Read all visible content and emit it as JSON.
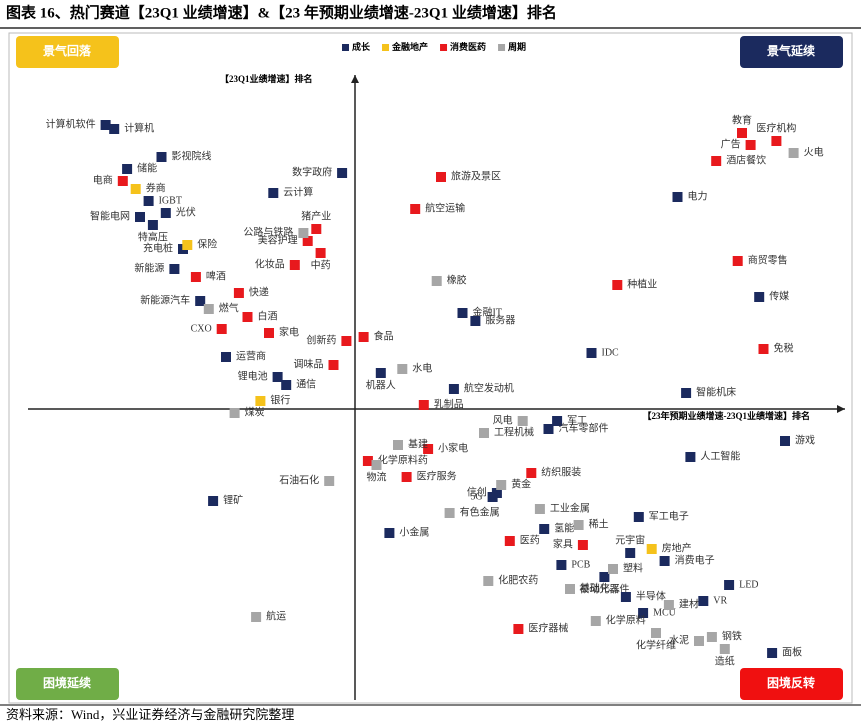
{
  "chart_data": {
    "type": "scatter",
    "title": "图表 16、热门赛道【23Q1 业绩增速】&【23 年预期业绩增速-23Q1 业绩增速】排名",
    "source": "资料来源：Wind，兴业证券经济与金融研究院整理",
    "x_label": "【23年预期业绩增速-23Q1业绩增速】排名",
    "y_label": "【23Q1业绩增速】排名",
    "quadrant_labels": {
      "top_left": "景气回落",
      "top_right": "景气延续",
      "bottom_left": "困境延续",
      "bottom_right": "困境反转"
    },
    "xlim": [
      -80,
      114
    ],
    "ylim": [
      -73,
      84
    ],
    "series": [
      {
        "name": "成长",
        "color": "#1b2a5e",
        "labels": [
          "计算机软件",
          "计算机",
          "储能",
          "影视院线",
          "IGBT",
          "光伏",
          "智能电网",
          "特高压",
          "充电桩",
          "新能源",
          "新能源汽车",
          "运营商",
          "锂电池",
          "通信",
          "数字政府",
          "云计算",
          "金融IT",
          "服务器",
          "机器人",
          "航空发动机",
          "IDC",
          "电力",
          "智能机床",
          "传媒",
          "军工",
          "汽车零部件",
          "游戏",
          "人工智能",
          "锂矿",
          "小金属",
          "信创",
          "5G",
          "氢能",
          "军工电子",
          "PCB",
          "被动元器件",
          "消费电子",
          "半导体",
          "MCU",
          "VR",
          "LED",
          "面板",
          "元宇宙"
        ],
        "x": [
          -58,
          -56,
          -53,
          -45,
          -48,
          -44,
          -50,
          -47,
          -40,
          -42,
          -36,
          -30,
          -18,
          -16,
          -3,
          -19,
          25,
          28,
          6,
          23,
          55,
          75,
          77,
          94,
          47,
          45,
          100,
          78,
          -33,
          8,
          33,
          32,
          44,
          66,
          48,
          58,
          72,
          63,
          67,
          81,
          87,
          97,
          64
        ],
        "y": [
          71,
          70,
          60,
          63,
          52,
          49,
          48,
          46,
          40,
          35,
          27,
          13,
          8,
          6,
          59,
          54,
          24,
          22,
          9,
          5,
          14,
          53,
          4,
          28,
          -3,
          -5,
          -8,
          -12,
          -23,
          -31,
          -21,
          -22,
          -30,
          -27,
          -39,
          -42,
          -38,
          -47,
          -51,
          -48,
          -44,
          -61,
          -36
        ]
      },
      {
        "name": "金融地产",
        "color": "#f5c21b",
        "labels": [
          "券商",
          "保险",
          "银行",
          "房地产"
        ],
        "x": [
          -51,
          -39,
          -22,
          69
        ],
        "y": [
          55,
          41,
          2,
          -35
        ]
      },
      {
        "name": "消费医药",
        "color": "#e8191d",
        "labels": [
          "电商",
          "啤酒",
          "快递",
          "白酒",
          "CXO",
          "家电",
          "旅游及景区",
          "航空运输",
          "猪产业",
          "美容护理",
          "中药",
          "化妆品",
          "食品",
          "创新药",
          "调味品",
          "乳制品",
          "种植业",
          "商贸零售",
          "免税",
          "教育",
          "广告",
          "医疗机构",
          "酒店餐饮",
          "小家电",
          "化学原料药",
          "医疗服务",
          "纺织服装",
          "医药",
          "家具",
          "医疗器械"
        ],
        "x": [
          -54,
          -37,
          -27,
          -25,
          -31,
          -20,
          20,
          14,
          -9,
          -11,
          -8,
          -14,
          2,
          -2,
          -5,
          16,
          61,
          89,
          95,
          90,
          92,
          98,
          84,
          17,
          3,
          12,
          41,
          36,
          53,
          38
        ],
        "y": [
          57,
          33,
          29,
          23,
          20,
          19,
          58,
          50,
          45,
          42,
          39,
          36,
          18,
          17,
          11,
          1,
          31,
          37,
          15,
          69,
          66,
          67,
          62,
          -10,
          -13,
          -17,
          -16,
          -33,
          -34,
          -55
        ]
      },
      {
        "name": "周期",
        "color": "#a6a6a6",
        "labels": [
          "火电",
          "橡胶",
          "水电",
          "公路与铁路",
          "燃气",
          "煤炭",
          "风电",
          "工程机械",
          "基建",
          "物流",
          "石油石化",
          "黄金",
          "工业金属",
          "有色金属",
          "稀土",
          "塑料",
          "基础化工",
          "化肥农药",
          "化学原料",
          "化学纤维",
          "水泥",
          "建材",
          "钢铁",
          "造纸",
          "航运"
        ],
        "x": [
          102,
          19,
          11,
          -12,
          -34,
          -28,
          39,
          30,
          10,
          5,
          -6,
          34,
          43,
          22,
          52,
          60,
          50,
          31,
          56,
          70,
          80,
          73,
          83,
          86,
          -23
        ],
        "y": [
          64,
          32,
          10,
          44,
          25,
          -1,
          -3,
          -6,
          -9,
          -14,
          -18,
          -19,
          -25,
          -26,
          -29,
          -40,
          -45,
          -43,
          -53,
          -56,
          -58,
          -49,
          -57,
          -60,
          -52
        ]
      }
    ]
  }
}
